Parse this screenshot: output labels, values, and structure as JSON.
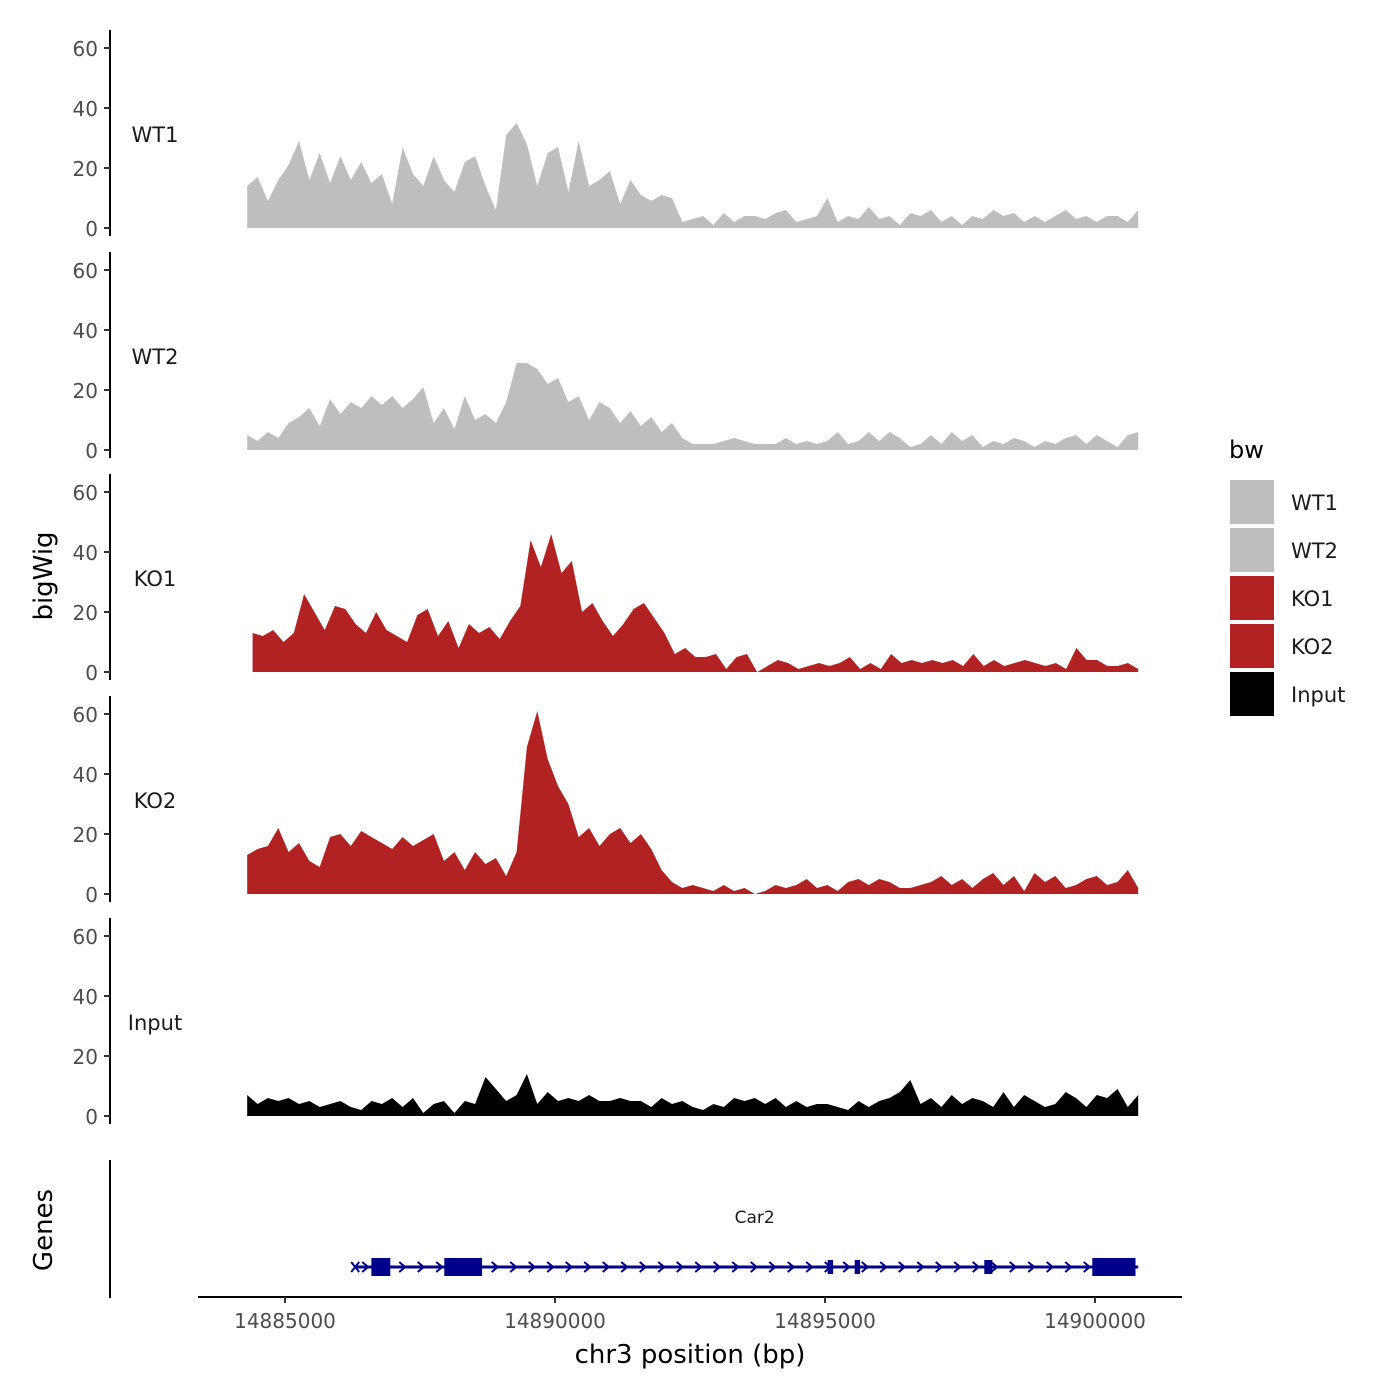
{
  "chart_data": {
    "type": "area",
    "title": "",
    "xlabel": "chr3 position (bp)",
    "ylabel": "bigWig",
    "genes_label": "Genes",
    "xlim": [
      14883400,
      14901600
    ],
    "ylim": [
      0,
      65
    ],
    "x_ticks": [
      14885000,
      14890000,
      14895000,
      14900000
    ],
    "x_tick_labels": [
      "14885000",
      "14890000",
      "14895000",
      "14900000"
    ],
    "y_ticks": [
      0,
      20,
      40,
      60
    ],
    "y_tick_labels": [
      "0",
      "20",
      "40",
      "60"
    ],
    "legend": {
      "title": "bw",
      "position": "right",
      "entries": [
        {
          "label": "WT1",
          "color": "#bebebe"
        },
        {
          "label": "WT2",
          "color": "#bebebe"
        },
        {
          "label": "KO1",
          "color": "#b22222"
        },
        {
          "label": "KO2",
          "color": "#b22222"
        },
        {
          "label": "Input",
          "color": "#000000"
        }
      ]
    },
    "tracks": [
      {
        "name": "WT1",
        "color": "#bebebe",
        "x_start": 14884300,
        "x_end": 14900800,
        "values": [
          14,
          17,
          9,
          16,
          21,
          29,
          16,
          25,
          15,
          24,
          16,
          22,
          15,
          18,
          8,
          27,
          18,
          14,
          24,
          16,
          12,
          22,
          24,
          14,
          6,
          31,
          35,
          28,
          14,
          25,
          27,
          12,
          29,
          14,
          16,
          19,
          8,
          16,
          11,
          9,
          11,
          10,
          2,
          3,
          4,
          1,
          5,
          2,
          4,
          4,
          3,
          5,
          6,
          2,
          3,
          4,
          10,
          2,
          4,
          3,
          7,
          3,
          4,
          1,
          5,
          4,
          6,
          2,
          4,
          1,
          4,
          3,
          6,
          4,
          5,
          2,
          4,
          2,
          4,
          6,
          3,
          4,
          2,
          4,
          4,
          2,
          6
        ]
      },
      {
        "name": "WT2",
        "color": "#bebebe",
        "x_start": 14884300,
        "x_end": 14900800,
        "values": [
          5,
          3,
          6,
          4,
          9,
          11,
          14,
          8,
          17,
          12,
          16,
          14,
          18,
          15,
          18,
          14,
          17,
          21,
          9,
          14,
          7,
          18,
          10,
          12,
          9,
          16,
          29,
          29,
          27,
          22,
          24,
          16,
          18,
          10,
          16,
          14,
          9,
          13,
          8,
          11,
          6,
          9,
          4,
          2,
          2,
          2,
          3,
          4,
          3,
          2,
          2,
          2,
          4,
          2,
          3,
          2,
          3,
          6,
          2,
          3,
          6,
          3,
          6,
          4,
          1,
          2,
          5,
          2,
          6,
          3,
          5,
          1,
          3,
          2,
          4,
          3,
          1,
          3,
          2,
          4,
          5,
          2,
          5,
          3,
          1,
          5,
          6
        ]
      },
      {
        "name": "KO1",
        "color": "#b22222",
        "x_start": 14884400,
        "x_end": 14900800,
        "values": [
          13,
          12,
          14,
          10,
          13,
          26,
          20,
          14,
          22,
          21,
          16,
          13,
          20,
          14,
          12,
          10,
          19,
          21,
          12,
          17,
          8,
          16,
          13,
          15,
          11,
          17,
          22,
          44,
          35,
          46,
          33,
          37,
          20,
          23,
          17,
          12,
          16,
          21,
          23,
          18,
          13,
          6,
          8,
          5,
          5,
          6,
          1,
          5,
          6,
          0,
          2,
          4,
          3,
          1,
          2,
          3,
          2,
          3,
          5,
          1,
          3,
          1,
          6,
          3,
          4,
          3,
          4,
          3,
          4,
          2,
          6,
          2,
          4,
          2,
          3,
          4,
          3,
          2,
          3,
          1,
          8,
          4,
          4,
          2,
          2,
          3,
          1
        ]
      },
      {
        "name": "KO2",
        "color": "#b22222",
        "x_start": 14884300,
        "x_end": 14900800,
        "values": [
          13,
          15,
          16,
          22,
          14,
          17,
          11,
          9,
          19,
          20,
          16,
          21,
          19,
          17,
          15,
          19,
          16,
          18,
          20,
          11,
          14,
          8,
          14,
          10,
          12,
          6,
          14,
          49,
          61,
          45,
          36,
          30,
          19,
          22,
          16,
          20,
          22,
          17,
          20,
          15,
          8,
          4,
          2,
          3,
          2,
          1,
          3,
          1,
          2,
          0,
          1,
          3,
          2,
          3,
          5,
          2,
          3,
          1,
          4,
          5,
          3,
          5,
          4,
          2,
          2,
          3,
          4,
          6,
          3,
          5,
          2,
          5,
          7,
          3,
          6,
          1,
          7,
          4,
          6,
          2,
          3,
          5,
          6,
          3,
          4,
          8,
          2
        ]
      },
      {
        "name": "Input",
        "color": "#000000",
        "x_start": 14884300,
        "x_end": 14900800,
        "values": [
          7,
          4,
          6,
          5,
          6,
          4,
          5,
          3,
          4,
          5,
          3,
          2,
          5,
          4,
          6,
          3,
          6,
          1,
          4,
          5,
          1,
          5,
          4,
          13,
          9,
          5,
          7,
          14,
          4,
          8,
          5,
          6,
          5,
          7,
          5,
          5,
          6,
          5,
          5,
          3,
          6,
          4,
          5,
          3,
          2,
          4,
          3,
          6,
          5,
          6,
          4,
          6,
          3,
          5,
          3,
          4,
          4,
          3,
          2,
          5,
          3,
          5,
          6,
          8,
          12,
          4,
          6,
          3,
          7,
          4,
          6,
          5,
          3,
          8,
          3,
          7,
          5,
          3,
          4,
          8,
          6,
          3,
          7,
          6,
          9,
          3,
          7
        ]
      }
    ],
    "genes": [
      {
        "name": "Car2",
        "strand": "+",
        "start": 14886300,
        "end": 14900800,
        "exons": [
          {
            "start": 14886600,
            "end": 14886950,
            "type": "thick"
          },
          {
            "start": 14887950,
            "end": 14888650,
            "type": "thick"
          },
          {
            "start": 14895050,
            "end": 14895150,
            "type": "thin"
          },
          {
            "start": 14895550,
            "end": 14895650,
            "type": "thin"
          },
          {
            "start": 14897950,
            "end": 14898100,
            "type": "thin"
          },
          {
            "start": 14899950,
            "end": 14900750,
            "type": "thick"
          }
        ]
      }
    ]
  }
}
